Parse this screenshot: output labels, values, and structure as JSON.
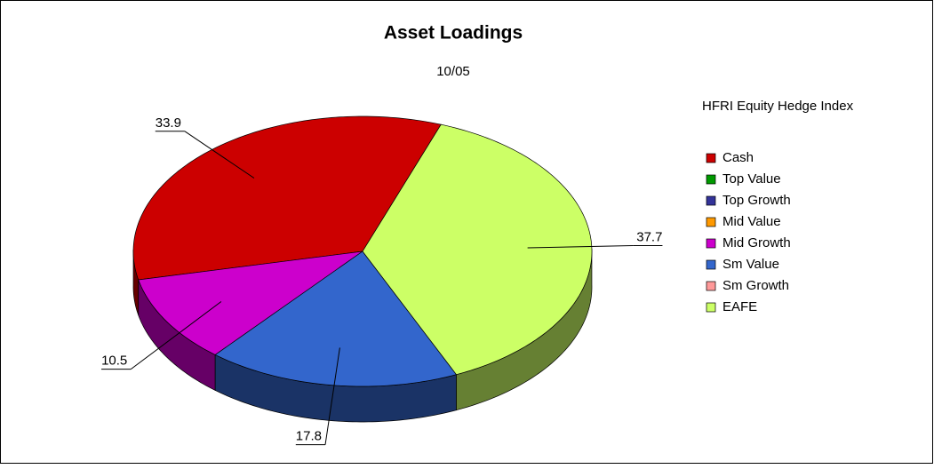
{
  "chart_data": {
    "type": "pie",
    "title": "Asset Loadings",
    "subtitle": "10/05",
    "legend_title": "HFRI Equity Hedge Index",
    "categories": [
      "Cash",
      "Top Value",
      "Top Growth",
      "Mid Value",
      "Mid Growth",
      "Sm Value",
      "Sm Growth",
      "EAFE"
    ],
    "values": [
      33.9,
      0,
      0,
      0,
      10.5,
      17.8,
      0,
      37.7
    ],
    "colors": [
      "#cc0000",
      "#009900",
      "#333399",
      "#ff9900",
      "#cc00cc",
      "#3366cc",
      "#ff9999",
      "#ccff66"
    ],
    "legend": "right"
  }
}
